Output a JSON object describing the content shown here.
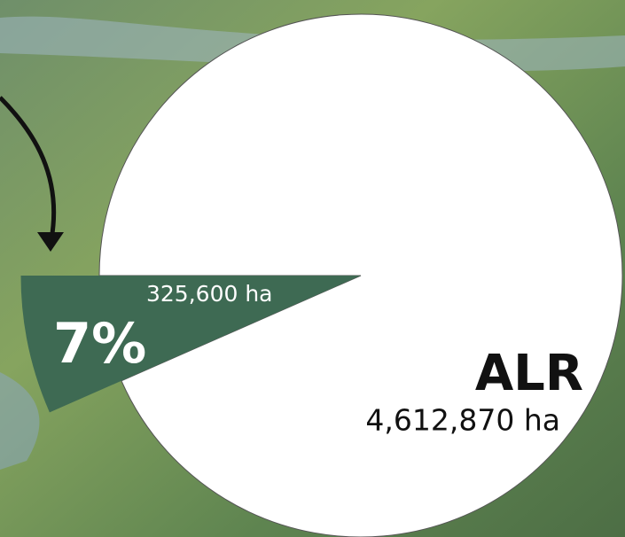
{
  "chart_data": {
    "type": "pie",
    "categories": [
      null,
      "ALR"
    ],
    "values": [
      325600,
      4612870
    ],
    "value_labels": [
      "325,600 ha",
      "4,612,870 ha"
    ],
    "colors": [
      "#3e6a53",
      "#ffffff"
    ],
    "annotation": "7%"
  }
}
